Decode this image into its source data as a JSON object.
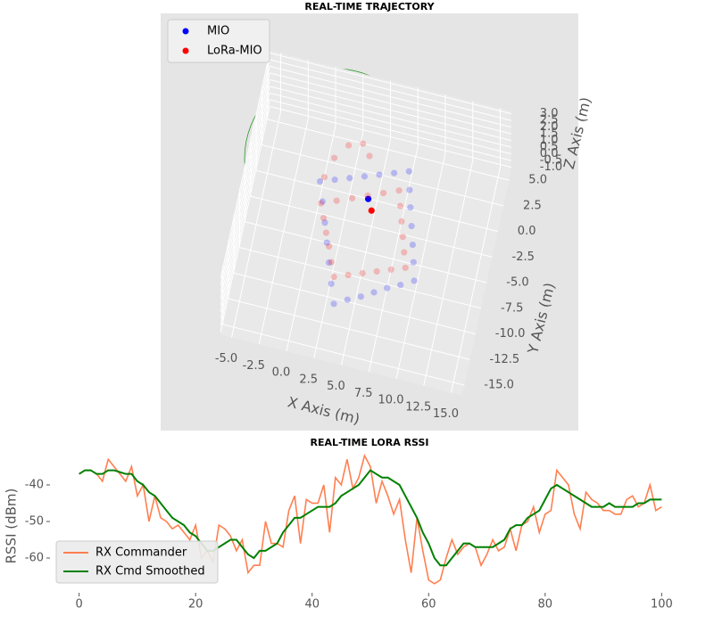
{
  "chart_data": [
    {
      "type": "scatter3d",
      "title": "REAL-TIME TRAJECTORY",
      "x_label": "X Axis (m)",
      "y_label": "Y Axis (m)",
      "z_label": "Z Axis (m)",
      "legend": "upper left",
      "series": [
        {
          "name": "MIO",
          "color": "#0000ff",
          "x": [
            0,
            1.25,
            2.5,
            3.75,
            5,
            6.25,
            7.5,
            7.9,
            8.3,
            8.75,
            9.2,
            9.6,
            10,
            8.9,
            7.8,
            6.75,
            5.7,
            4.6,
            3.5,
            2.9,
            2.3,
            1.75,
            1.2,
            0.6,
            4.5
          ],
          "y": [
            -1,
            -0.5,
            0,
            0.5,
            1,
            1.5,
            2,
            0.3,
            -1.3,
            -3,
            -4.7,
            -6.3,
            -8,
            -8.7,
            -9.3,
            -10,
            -10.7,
            -11.3,
            -12,
            -10.2,
            -8.3,
            -6.5,
            -4.7,
            -2.8,
            -1.5
          ],
          "z": [
            0,
            0,
            0,
            0,
            0,
            0,
            0,
            0,
            0,
            0,
            0,
            0,
            0,
            0,
            0,
            0,
            0,
            0,
            0,
            0,
            0,
            0,
            0,
            0,
            0
          ]
        },
        {
          "name": "LoRa-MIO",
          "color": "#ff0000",
          "x": [
            0.5,
            1.8,
            3.1,
            4.4,
            5.7,
            7,
            7.4,
            7.8,
            8.2,
            8.6,
            9,
            7.8,
            6.6,
            5.4,
            4.2,
            3,
            2.5,
            2,
            1.5,
            1,
            0.3,
            0.8,
            1.8,
            3,
            3.8,
            5
          ],
          "y": [
            -3,
            -2.4,
            -1.8,
            -1.2,
            -0.6,
            0,
            -1.4,
            -2.8,
            -4.2,
            -5.6,
            -7,
            -7.5,
            -8,
            -8.5,
            -9,
            -9.5,
            -8.2,
            -6.8,
            -5.6,
            -4.3,
            -0.5,
            1.5,
            3,
            3.5,
            2.5,
            -2.5
          ],
          "z": [
            0,
            0,
            0,
            0,
            0,
            0,
            0,
            0,
            0,
            0,
            0,
            0,
            0,
            0,
            0,
            0,
            0,
            0,
            0,
            0,
            0,
            0,
            0,
            0,
            0,
            0
          ]
        }
      ],
      "xlim": [
        -6,
        16
      ],
      "ylim": [
        -16,
        6
      ],
      "zlim": [
        -1.2,
        3.2
      ],
      "xticks": [
        {
          "value": -5,
          "label": "-5.0"
        },
        {
          "value": -2.5,
          "label": "-2.5"
        },
        {
          "value": 0,
          "label": "0.0"
        },
        {
          "value": 2.5,
          "label": "2.5"
        },
        {
          "value": 5,
          "label": "5.0"
        },
        {
          "value": 7.5,
          "label": "7.5"
        },
        {
          "value": 10,
          "label": "10.0"
        },
        {
          "value": 12.5,
          "label": "12.5"
        },
        {
          "value": 15,
          "label": "15.0"
        }
      ],
      "yticks": [
        {
          "value": 5,
          "label": "5.0"
        },
        {
          "value": 2.5,
          "label": "2.5"
        },
        {
          "value": 0,
          "label": "0.0"
        },
        {
          "value": -2.5,
          "label": "-2.5"
        },
        {
          "value": -5,
          "label": "-5.0"
        },
        {
          "value": -7.5,
          "label": "-7.5"
        },
        {
          "value": -10,
          "label": "-10.0"
        },
        {
          "value": -12.5,
          "label": "-12.5"
        },
        {
          "value": -15,
          "label": "-15.0"
        }
      ],
      "zticks": [
        {
          "value": -1,
          "label": "-1.0"
        },
        {
          "value": -0.5,
          "label": "-0.5"
        },
        {
          "value": 0,
          "label": "0.0"
        },
        {
          "value": 0.5,
          "label": "0.5"
        },
        {
          "value": 1,
          "label": "1.0"
        },
        {
          "value": 1.5,
          "label": "1.5"
        },
        {
          "value": 2,
          "label": "2.0"
        },
        {
          "value": 2.5,
          "label": "2.5"
        },
        {
          "value": 3,
          "label": "3.0"
        }
      ],
      "grid": true
    },
    {
      "type": "line",
      "title": "REAL-TIME LORA RSSI",
      "y_label": "RSSI (dBm)",
      "legend": "lower left",
      "x": [
        0,
        1,
        2,
        3,
        4,
        5,
        6,
        7,
        8,
        9,
        10,
        11,
        12,
        13,
        14,
        15,
        16,
        17,
        18,
        19,
        20,
        21,
        22,
        23,
        24,
        25,
        26,
        27,
        28,
        29,
        30,
        31,
        32,
        33,
        34,
        35,
        36,
        37,
        38,
        39,
        40,
        41,
        42,
        43,
        44,
        45,
        46,
        47,
        48,
        49,
        50,
        51,
        52,
        53,
        54,
        55,
        56,
        57,
        58,
        59,
        60,
        61,
        62,
        63,
        64,
        65,
        66,
        67,
        68,
        69,
        70,
        71,
        72,
        73,
        74,
        75,
        76,
        77,
        78,
        79,
        80,
        81,
        82,
        83,
        84,
        85,
        86,
        87,
        88,
        89,
        90,
        91,
        92,
        93,
        94,
        95,
        96,
        97,
        98,
        99,
        100
      ],
      "series": [
        {
          "name": "RX Commander",
          "color": "#ff7f50",
          "values": [
            -37,
            -36,
            -36,
            -37,
            -39,
            -33,
            -35,
            -37,
            -39,
            -35,
            -43,
            -40,
            -50,
            -43,
            -49,
            -50,
            -52,
            -51,
            -53,
            -55,
            -51,
            -60,
            -58,
            -61,
            -51,
            -52,
            -54,
            -58,
            -55,
            -64,
            -62,
            -62,
            -50,
            -56,
            -56,
            -57,
            -47,
            -43,
            -56,
            -44,
            -45,
            -45,
            -40,
            -53,
            -38,
            -40,
            -33,
            -41,
            -38,
            -32,
            -35,
            -45,
            -39,
            -43,
            -48,
            -44,
            -55,
            -64,
            -49,
            -58,
            -66,
            -67,
            -66,
            -60,
            -55,
            -59,
            -57,
            -56,
            -57,
            -62,
            -59,
            -55,
            -58,
            -57,
            -52,
            -58,
            -51,
            -50,
            -46,
            -53,
            -48,
            -47,
            -36,
            -38,
            -40,
            -48,
            -52,
            -42,
            -44,
            -45,
            -47,
            -47,
            -48,
            -48,
            -44,
            -43,
            -46,
            -45,
            -40,
            -47,
            -46
          ]
        },
        {
          "name": "RX Cmd Smoothed",
          "color": "#008000",
          "values": [
            -37,
            -36,
            -36,
            -37,
            -37,
            -36,
            -36,
            -36.5,
            -37,
            -37,
            -39,
            -40,
            -42,
            -43,
            -45,
            -47,
            -49,
            -50,
            -51,
            -53,
            -54,
            -56,
            -58,
            -58,
            -57,
            -56,
            -55,
            -55,
            -57,
            -59,
            -60,
            -58,
            -58,
            -57,
            -56,
            -53,
            -51,
            -49,
            -49,
            -48,
            -47,
            -46,
            -46,
            -46,
            -45,
            -43,
            -42,
            -41,
            -40,
            -38,
            -36,
            -37,
            -38,
            -38,
            -39,
            -40,
            -43,
            -46,
            -49,
            -53,
            -56,
            -60,
            -62,
            -62,
            -60,
            -58,
            -56,
            -56,
            -57,
            -57,
            -57,
            -57,
            -56,
            -55,
            -52,
            -51,
            -51,
            -49,
            -48,
            -47,
            -44,
            -41,
            -40,
            -41,
            -42,
            -43,
            -44,
            -45,
            -46,
            -46,
            -46,
            -45,
            -46,
            -46,
            -46,
            -46,
            -45,
            -45,
            -44,
            -44,
            -44
          ]
        }
      ],
      "xlim": [
        -5,
        105
      ],
      "ylim": [
        -69.5,
        -30.5
      ],
      "xticks": [
        0,
        20,
        40,
        60,
        80,
        100
      ],
      "yticks": [
        -60,
        -50,
        -40
      ]
    }
  ]
}
